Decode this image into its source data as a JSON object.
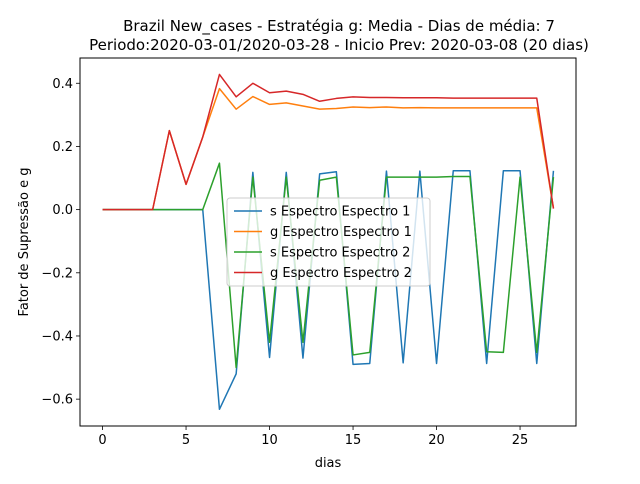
{
  "chart_data": {
    "type": "line",
    "title_line1": "Brazil New_cases - Estratégia g: Media - Dias de média: 7",
    "title_line2": "Periodo:2020-03-01/2020-03-28 - Inicio Prev: 2020-03-08 (20 dias)",
    "xlabel": "dias",
    "ylabel": "Fator de Supressão e g",
    "xlim": [
      -1.35,
      28.35
    ],
    "ylim": [
      -0.685,
      0.48
    ],
    "xticks": [
      0,
      5,
      10,
      15,
      20,
      25
    ],
    "xtick_labels": [
      "0",
      "5",
      "10",
      "15",
      "20",
      "25"
    ],
    "yticks": [
      -0.6,
      -0.4,
      -0.2,
      0.0,
      0.2,
      0.4
    ],
    "ytick_labels": [
      "−0.6",
      "−0.4",
      "−0.2",
      "0.0",
      "0.2",
      "0.4"
    ],
    "legend_position": "center",
    "grid": false,
    "x": [
      0,
      1,
      2,
      3,
      4,
      5,
      6,
      7,
      8,
      9,
      10,
      11,
      12,
      13,
      14,
      15,
      16,
      17,
      18,
      19,
      20,
      21,
      22,
      23,
      24,
      25,
      26,
      27
    ],
    "series": [
      {
        "name": "s Espectro Espectro 1",
        "color": "#1f77b4",
        "values": [
          0,
          0,
          0,
          0,
          0,
          0,
          0,
          -0.632,
          -0.52,
          0.118,
          -0.468,
          0.118,
          -0.47,
          0.113,
          0.12,
          -0.49,
          -0.487,
          0.122,
          -0.485,
          0.122,
          -0.487,
          0.123,
          0.123,
          -0.487,
          0.123,
          0.123,
          -0.487,
          0.123
        ]
      },
      {
        "name": "g Espectro Espectro 1",
        "color": "#ff7f0e",
        "values": [
          0,
          0,
          0,
          0,
          0.25,
          0.08,
          0.23,
          0.383,
          0.318,
          0.358,
          0.333,
          0.338,
          0.328,
          0.318,
          0.32,
          0.325,
          0.323,
          0.325,
          0.322,
          0.323,
          0.322,
          0.322,
          0.322,
          0.322,
          0.322,
          0.322,
          0.322,
          0.005
        ]
      },
      {
        "name": "s Espectro Espectro 2",
        "color": "#2ca02c",
        "values": [
          0,
          0,
          0,
          0,
          0,
          0,
          0,
          0.147,
          -0.5,
          0.103,
          -0.42,
          0.103,
          -0.42,
          0.093,
          0.103,
          -0.46,
          -0.452,
          0.103,
          0.103,
          0.103,
          0.103,
          0.105,
          0.105,
          -0.45,
          -0.452,
          0.103,
          -0.452,
          0.103
        ]
      },
      {
        "name": "g Espectro Espectro 2",
        "color": "#d62728",
        "values": [
          0,
          0,
          0,
          0,
          0.25,
          0.08,
          0.23,
          0.428,
          0.357,
          0.4,
          0.37,
          0.375,
          0.365,
          0.343,
          0.352,
          0.357,
          0.355,
          0.355,
          0.354,
          0.354,
          0.354,
          0.353,
          0.353,
          0.353,
          0.353,
          0.353,
          0.353,
          0.003
        ]
      }
    ]
  }
}
